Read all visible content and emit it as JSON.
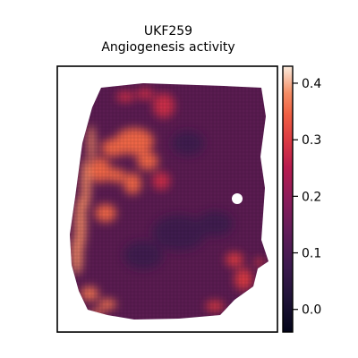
{
  "chart_data": {
    "type": "heatmap",
    "title": "UKF259",
    "subtitle": "Angiogenesis activity",
    "xlabel": "",
    "ylabel": "",
    "grid": false,
    "colormap": "rocket",
    "colorbar": {
      "min": -0.04,
      "max": 0.43,
      "ticks": [
        0.4,
        0.3,
        0.2,
        0.1,
        0.0
      ],
      "tick_labels": [
        "0.4",
        "0.3",
        "0.2",
        "0.1",
        "0.0"
      ]
    },
    "tissue_hotspots": [
      {
        "label": "upper-left cluster",
        "value": 0.35
      },
      {
        "label": "left margin rim",
        "value": 0.38
      },
      {
        "label": "bottom-left edge",
        "value": 0.36
      },
      {
        "label": "top-center region",
        "value": 0.28
      },
      {
        "label": "right-lower edge",
        "value": 0.3
      },
      {
        "label": "interior background",
        "value": 0.08
      }
    ]
  }
}
